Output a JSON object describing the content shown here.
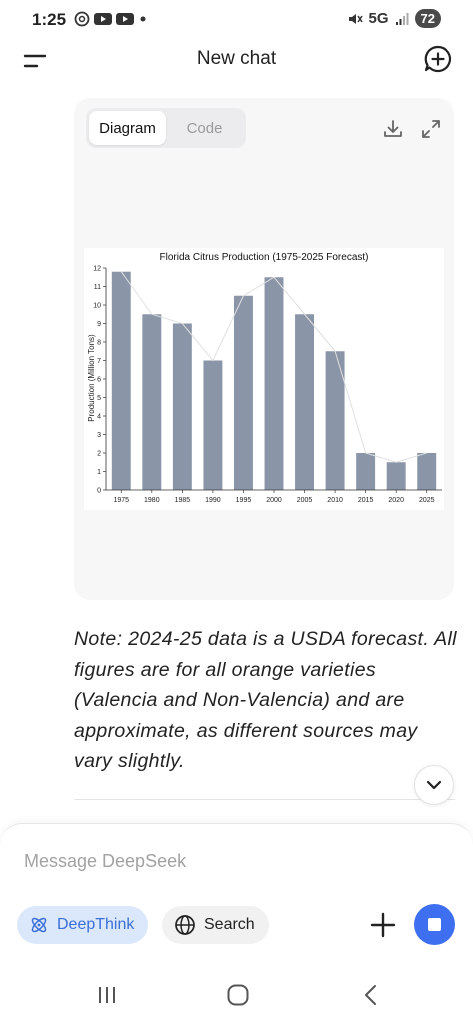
{
  "status": {
    "time": "1:25",
    "network": "5G",
    "battery": "72"
  },
  "header": {
    "title": "New chat"
  },
  "artifact": {
    "tabs": [
      {
        "label": "Diagram",
        "active": true
      },
      {
        "label": "Code",
        "active": false
      }
    ],
    "icons": [
      "download-icon",
      "expand-icon"
    ]
  },
  "chart_data": {
    "type": "bar",
    "title": "Florida Citrus Production (1975-2025 Forecast)",
    "xlabel": "",
    "ylabel": "Production (Million Tons)",
    "categories": [
      "1975",
      "1980",
      "1985",
      "1990",
      "1995",
      "2000",
      "2005",
      "2010",
      "2015",
      "2020",
      "2025"
    ],
    "values": [
      11.8,
      9.5,
      9,
      7,
      10.5,
      11.5,
      9.5,
      7.5,
      2,
      1.5,
      2
    ],
    "ylim": [
      0,
      12
    ],
    "yticks": [
      "0",
      "1",
      "2",
      "3",
      "4",
      "5",
      "6",
      "7",
      "8",
      "9",
      "10",
      "11",
      "12"
    ],
    "overlay_line": true,
    "bar_color": "#8a96a8",
    "line_color": "#e0e0e0",
    "grid": false,
    "legend": "none"
  },
  "note": "Note: 2024-25 data is a USDA forecast. All figures are for all orange varieties (Valencia and Non-Valencia) and are approximate, as different sources may vary slightly.",
  "composer": {
    "placeholder": "Message DeepSeek",
    "deepthink_label": "DeepThink",
    "search_label": "Search"
  },
  "colors": {
    "accent": "#3d6ff0",
    "deepthink_bg": "#dbe8fb",
    "deepthink_text": "#3b6fd8"
  }
}
